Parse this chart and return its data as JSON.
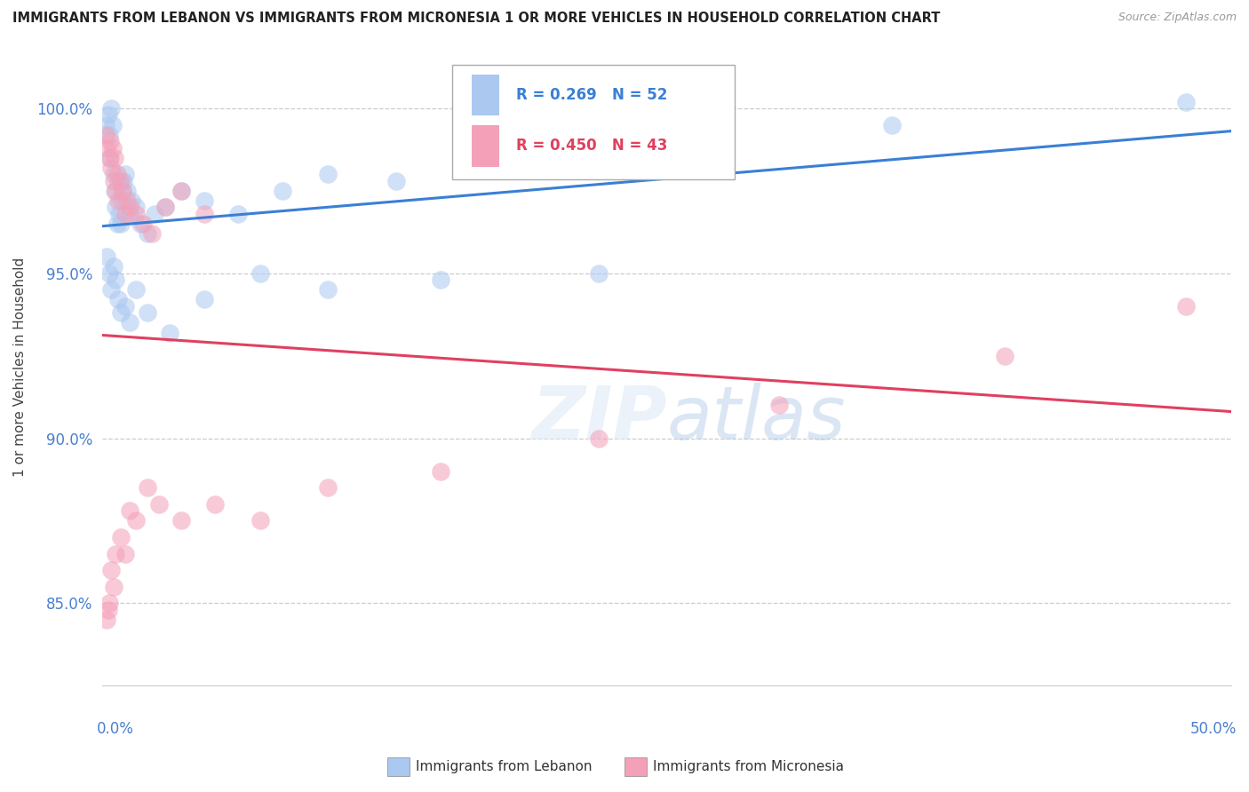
{
  "title": "IMMIGRANTS FROM LEBANON VS IMMIGRANTS FROM MICRONESIA 1 OR MORE VEHICLES IN HOUSEHOLD CORRELATION CHART",
  "source": "Source: ZipAtlas.com",
  "ylabel": "1 or more Vehicles in Household",
  "ytick_vals": [
    85.0,
    90.0,
    95.0,
    100.0
  ],
  "ytick_labels": [
    "85.0%",
    "90.0%",
    "95.0%",
    "100.0%"
  ],
  "xlim": [
    0.0,
    50.0
  ],
  "ylim": [
    82.5,
    101.8
  ],
  "lebanon_R": 0.269,
  "lebanon_N": 52,
  "micronesia_R": 0.45,
  "micronesia_N": 43,
  "lebanon_color": "#aac8f0",
  "micronesia_color": "#f4a0b8",
  "lebanon_line_color": "#3a7fd5",
  "micronesia_line_color": "#e04060",
  "legend_label_lebanon": "Immigrants from Lebanon",
  "legend_label_micronesia": "Immigrants from Micronesia",
  "leb_x": [
    0.15,
    0.25,
    0.3,
    0.35,
    0.4,
    0.45,
    0.5,
    0.55,
    0.6,
    0.65,
    0.7,
    0.75,
    0.8,
    0.85,
    0.9,
    0.95,
    1.0,
    1.1,
    1.2,
    1.3,
    1.5,
    1.7,
    2.0,
    2.3,
    2.8,
    3.5,
    4.5,
    6.0,
    8.0,
    10.0,
    13.0,
    18.0,
    25.0,
    35.0,
    48.0,
    0.2,
    0.3,
    0.4,
    0.5,
    0.6,
    0.7,
    0.8,
    1.0,
    1.2,
    1.5,
    2.0,
    3.0,
    4.5,
    7.0,
    10.0,
    15.0,
    22.0
  ],
  "leb_y": [
    99.5,
    99.8,
    99.2,
    98.5,
    100.0,
    99.5,
    98.0,
    97.5,
    97.0,
    96.5,
    97.8,
    96.8,
    96.5,
    97.2,
    97.5,
    97.8,
    98.0,
    97.5,
    96.8,
    97.2,
    97.0,
    96.5,
    96.2,
    96.8,
    97.0,
    97.5,
    97.2,
    96.8,
    97.5,
    98.0,
    97.8,
    98.5,
    99.0,
    99.5,
    100.2,
    95.5,
    95.0,
    94.5,
    95.2,
    94.8,
    94.2,
    93.8,
    94.0,
    93.5,
    94.5,
    93.8,
    93.2,
    94.2,
    95.0,
    94.5,
    94.8,
    95.0
  ],
  "mic_x": [
    0.15,
    0.2,
    0.3,
    0.35,
    0.4,
    0.45,
    0.5,
    0.55,
    0.6,
    0.65,
    0.7,
    0.8,
    0.9,
    1.0,
    1.1,
    1.2,
    1.5,
    1.8,
    2.2,
    2.8,
    3.5,
    4.5,
    0.2,
    0.3,
    0.4,
    0.5,
    0.6,
    0.8,
    1.0,
    1.2,
    1.5,
    2.0,
    2.5,
    3.5,
    5.0,
    7.0,
    10.0,
    15.0,
    22.0,
    30.0,
    40.0,
    48.0,
    0.25
  ],
  "mic_y": [
    99.2,
    98.8,
    98.5,
    99.0,
    98.2,
    98.8,
    97.8,
    98.5,
    97.5,
    98.0,
    97.2,
    97.8,
    97.5,
    96.8,
    97.2,
    97.0,
    96.8,
    96.5,
    96.2,
    97.0,
    97.5,
    96.8,
    84.5,
    85.0,
    86.0,
    85.5,
    86.5,
    87.0,
    86.5,
    87.8,
    87.5,
    88.5,
    88.0,
    87.5,
    88.0,
    87.5,
    88.5,
    89.0,
    90.0,
    91.0,
    92.5,
    94.0,
    84.8
  ]
}
